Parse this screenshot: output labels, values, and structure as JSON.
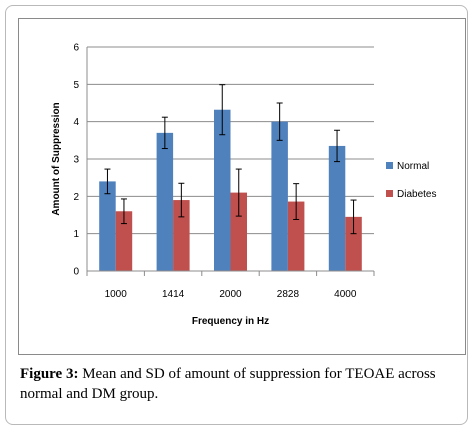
{
  "chart_data": {
    "type": "bar",
    "categories": [
      "1000",
      "1414",
      "2000",
      "2828",
      "4000"
    ],
    "series": [
      {
        "name": "Normal",
        "color": "#4f81bd",
        "values": [
          2.4,
          3.7,
          4.32,
          4.0,
          3.35
        ],
        "errors": [
          0.33,
          0.42,
          0.67,
          0.5,
          0.42
        ]
      },
      {
        "name": "Diabetes",
        "color": "#c0504d",
        "values": [
          1.6,
          1.9,
          2.1,
          1.86,
          1.45
        ],
        "errors": [
          0.33,
          0.45,
          0.63,
          0.48,
          0.45
        ]
      }
    ],
    "xlabel": "Frequency in Hz",
    "ylabel": "Amount of Suppression",
    "ylim": [
      0,
      6
    ],
    "yticks": [
      "0",
      "1",
      "2",
      "3",
      "4",
      "5",
      "6"
    ],
    "grid": true,
    "legend": "right"
  },
  "caption": {
    "label": "Figure 3:",
    "text": " Mean and SD of amount of suppression for TEOAE across normal and DM group."
  }
}
